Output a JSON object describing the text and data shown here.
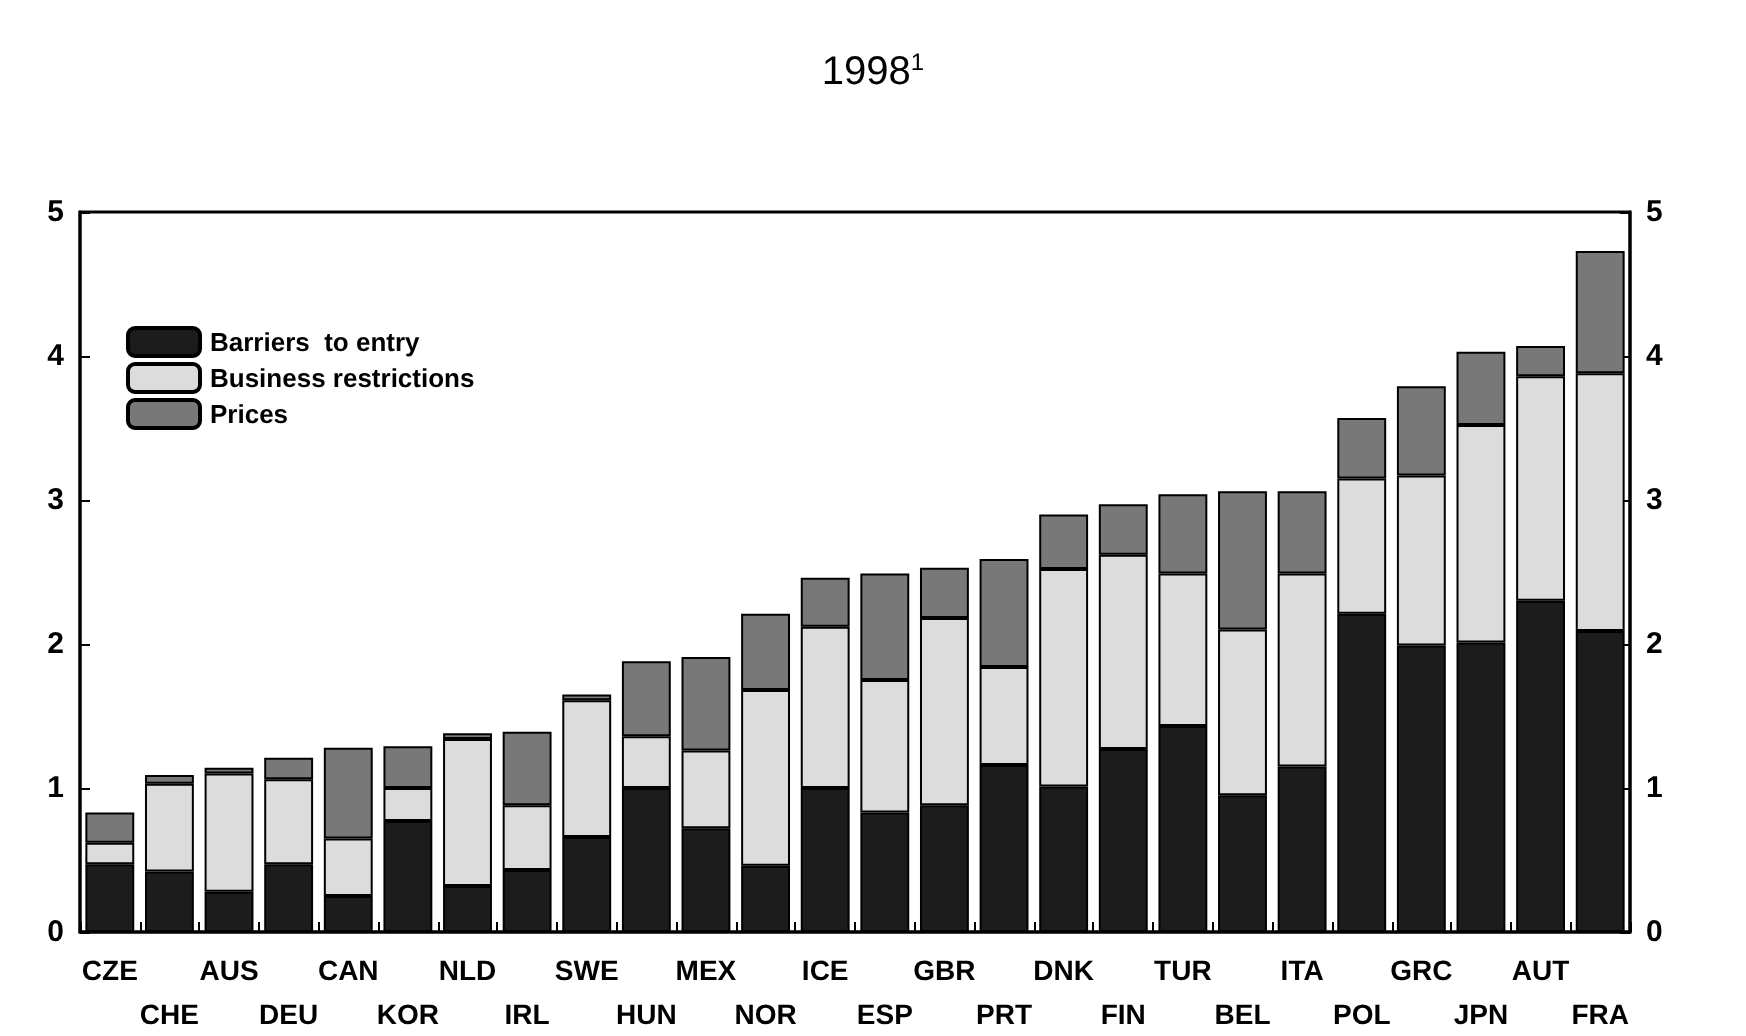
{
  "chart_data": {
    "type": "bar",
    "stacked": true,
    "title": "1998$^{1}$",
    "categories": [
      "CZE",
      "CHE",
      "AUS",
      "DEU",
      "CAN",
      "KOR",
      "NLD",
      "IRL",
      "SWE",
      "HUN",
      "MEX",
      "NOR",
      "ICE",
      "ESP",
      "GBR",
      "PRT",
      "DNK",
      "FIN",
      "TUR",
      "BEL",
      "ITA",
      "POL",
      "GRC",
      "JPN",
      "AUT",
      "FRA"
    ],
    "series": [
      {
        "name": "Barriers  to entry",
        "color": "#1c1c1c",
        "values": [
          0.47,
          0.42,
          0.28,
          0.47,
          0.25,
          0.77,
          0.32,
          0.43,
          0.66,
          1.0,
          0.72,
          0.46,
          1.0,
          0.83,
          0.88,
          1.16,
          1.01,
          1.27,
          1.43,
          0.95,
          1.15,
          2.21,
          1.99,
          2.01,
          2.3,
          2.09
        ]
      },
      {
        "name": "Business restrictions",
        "color": "#dcdcdc",
        "values": [
          0.15,
          0.61,
          0.82,
          0.59,
          0.4,
          0.23,
          1.02,
          0.45,
          0.95,
          0.36,
          0.54,
          1.22,
          1.12,
          0.92,
          1.3,
          0.68,
          1.51,
          1.35,
          1.06,
          1.15,
          1.34,
          0.94,
          1.18,
          1.51,
          1.56,
          1.79
        ]
      },
      {
        "name": "Prices",
        "color": "#787878",
        "values": [
          0.21,
          0.06,
          0.04,
          0.15,
          0.63,
          0.29,
          0.04,
          0.51,
          0.04,
          0.52,
          0.65,
          0.53,
          0.34,
          0.74,
          0.35,
          0.75,
          0.38,
          0.35,
          0.55,
          0.96,
          0.57,
          0.42,
          0.62,
          0.51,
          0.21,
          0.85
        ]
      }
    ],
    "ylim": [
      0,
      5
    ],
    "yticks": [
      0,
      1,
      2,
      3,
      4,
      5
    ],
    "y2lim": [
      0,
      5
    ],
    "y2ticks": [
      0,
      1,
      2,
      3,
      4,
      5
    ],
    "grid": false,
    "legend": "top left"
  }
}
